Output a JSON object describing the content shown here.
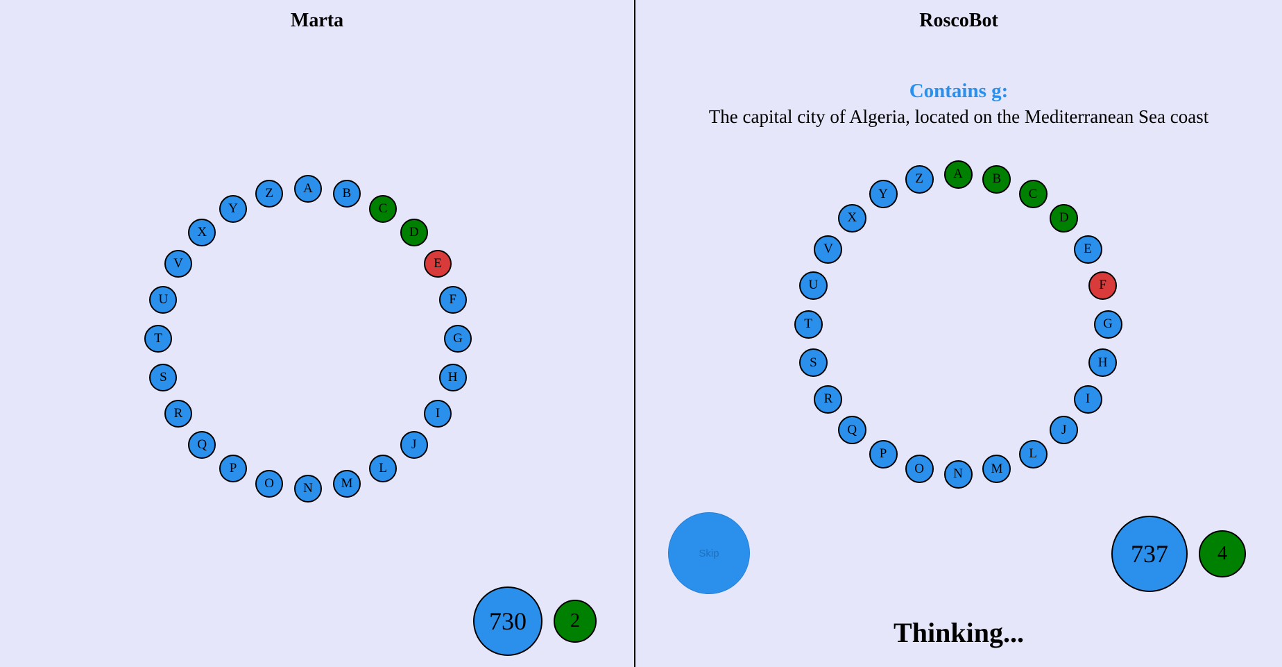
{
  "left": {
    "player_name": "Marta",
    "letters": [
      {
        "letter": "A",
        "status": "pending"
      },
      {
        "letter": "B",
        "status": "pending"
      },
      {
        "letter": "C",
        "status": "correct"
      },
      {
        "letter": "D",
        "status": "correct"
      },
      {
        "letter": "E",
        "status": "wrong"
      },
      {
        "letter": "F",
        "status": "pending"
      },
      {
        "letter": "G",
        "status": "pending"
      },
      {
        "letter": "H",
        "status": "pending"
      },
      {
        "letter": "I",
        "status": "pending"
      },
      {
        "letter": "J",
        "status": "pending"
      },
      {
        "letter": "L",
        "status": "pending"
      },
      {
        "letter": "M",
        "status": "pending"
      },
      {
        "letter": "N",
        "status": "pending"
      },
      {
        "letter": "O",
        "status": "pending"
      },
      {
        "letter": "P",
        "status": "pending"
      },
      {
        "letter": "Q",
        "status": "pending"
      },
      {
        "letter": "R",
        "status": "pending"
      },
      {
        "letter": "S",
        "status": "pending"
      },
      {
        "letter": "T",
        "status": "pending"
      },
      {
        "letter": "U",
        "status": "pending"
      },
      {
        "letter": "V",
        "status": "pending"
      },
      {
        "letter": "X",
        "status": "pending"
      },
      {
        "letter": "Y",
        "status": "pending"
      },
      {
        "letter": "Z",
        "status": "pending"
      }
    ],
    "time_left": "730",
    "correct_count": "2"
  },
  "right": {
    "player_name": "RoscoBot",
    "question_type": "Contains g:",
    "question_text": "The capital city of Algeria, located on the Mediterranean Sea coast",
    "letters": [
      {
        "letter": "A",
        "status": "correct"
      },
      {
        "letter": "B",
        "status": "correct"
      },
      {
        "letter": "C",
        "status": "correct"
      },
      {
        "letter": "D",
        "status": "correct"
      },
      {
        "letter": "E",
        "status": "pending"
      },
      {
        "letter": "F",
        "status": "wrong"
      },
      {
        "letter": "G",
        "status": "pending"
      },
      {
        "letter": "H",
        "status": "pending"
      },
      {
        "letter": "I",
        "status": "pending"
      },
      {
        "letter": "J",
        "status": "pending"
      },
      {
        "letter": "L",
        "status": "pending"
      },
      {
        "letter": "M",
        "status": "pending"
      },
      {
        "letter": "N",
        "status": "pending"
      },
      {
        "letter": "O",
        "status": "pending"
      },
      {
        "letter": "P",
        "status": "pending"
      },
      {
        "letter": "Q",
        "status": "pending"
      },
      {
        "letter": "R",
        "status": "pending"
      },
      {
        "letter": "S",
        "status": "pending"
      },
      {
        "letter": "T",
        "status": "pending"
      },
      {
        "letter": "U",
        "status": "pending"
      },
      {
        "letter": "V",
        "status": "pending"
      },
      {
        "letter": "X",
        "status": "pending"
      },
      {
        "letter": "Y",
        "status": "pending"
      },
      {
        "letter": "Z",
        "status": "pending"
      }
    ],
    "skip_label": "Skip",
    "time_left": "737",
    "correct_count": "4",
    "status_text": "Thinking..."
  },
  "colors": {
    "background": "#e6e6fa",
    "pending": "#2a90ec",
    "correct": "#008000",
    "wrong": "#d93b3b",
    "question_type": "#2a90ec"
  }
}
